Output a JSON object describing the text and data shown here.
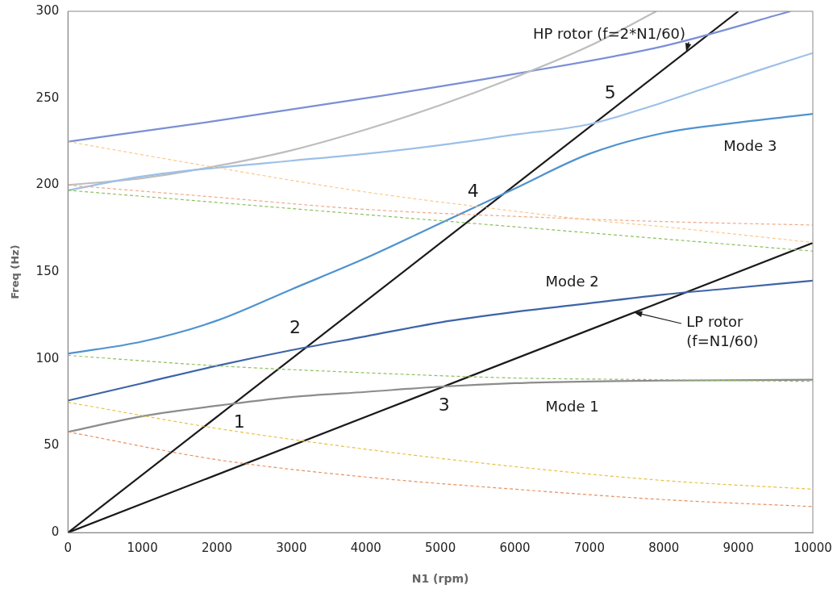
{
  "chart_data": {
    "type": "line",
    "xlabel": "N1 (rpm)",
    "ylabel": "Freq (Hz)",
    "xlim": [
      0,
      10000
    ],
    "xticks": [
      0,
      1000,
      2000,
      3000,
      4000,
      5000,
      6000,
      7000,
      8000,
      9000,
      10000
    ],
    "ylim": [
      0,
      300
    ],
    "yticks": [
      0,
      50,
      100,
      150,
      200,
      250,
      300
    ],
    "grid": false,
    "legend": false,
    "marker": "none",
    "series": [
      {
        "color": "#f9c98a",
        "line_style": "dashed",
        "x": [
          0,
          2000,
          4000,
          6000,
          7000,
          8000,
          10000
        ],
        "values": [
          225,
          210,
          196,
          185,
          180,
          176,
          167
        ]
      },
      {
        "color": "#f0a88a",
        "line_style": "dashed",
        "x": [
          0,
          2000,
          4000,
          6000,
          8000,
          10000
        ],
        "values": [
          200,
          193,
          186,
          182,
          179,
          177
        ]
      },
      {
        "color": "#8cc060",
        "line_style": "dashed",
        "x": [
          0,
          2000,
          4000,
          6000,
          8000,
          10000
        ],
        "values": [
          197,
          190,
          183,
          176,
          169,
          162
        ]
      },
      {
        "color": "#8cc060",
        "line_style": "dashed",
        "x": [
          0,
          2000,
          4000,
          6000,
          8000,
          10000
        ],
        "values": [
          102,
          96,
          92,
          89,
          88,
          87
        ]
      },
      {
        "color": "#e8c040",
        "line_style": "dashed",
        "x": [
          0,
          2000,
          4000,
          6000,
          8000,
          10000
        ],
        "values": [
          75,
          60,
          48,
          38,
          30,
          25
        ]
      },
      {
        "color": "#e89060",
        "line_style": "dashed",
        "x": [
          0,
          2000,
          4000,
          6000,
          8000,
          10000
        ],
        "values": [
          58,
          42,
          32,
          25,
          19,
          15
        ]
      },
      {
        "color": "#8c8c8c",
        "line_style": "solid",
        "x": [
          0,
          1000,
          2000,
          3000,
          4000,
          5000,
          6000,
          7000,
          8000,
          10000
        ],
        "values": [
          58,
          67,
          73,
          78,
          81,
          84,
          86,
          87,
          87.5,
          88
        ]
      },
      {
        "color": "#3e64a8",
        "line_style": "solid",
        "x": [
          0,
          1000,
          2000,
          3000,
          4000,
          5000,
          6000,
          7000,
          8000,
          9000,
          10000
        ],
        "values": [
          76,
          86,
          96,
          105,
          113,
          121,
          127,
          132,
          137,
          141,
          145
        ]
      },
      {
        "color": "#4f93cf",
        "line_style": "solid",
        "x": [
          0,
          1000,
          2000,
          3000,
          4000,
          5000,
          6000,
          7000,
          8000,
          9000,
          10000
        ],
        "values": [
          103,
          110,
          122,
          140,
          158,
          178,
          198,
          218,
          230,
          236,
          241
        ]
      },
      {
        "color": "#9cc0e8",
        "line_style": "solid",
        "x": [
          0,
          1000,
          2000,
          3000,
          4000,
          5000,
          6000,
          7000,
          7800,
          8500,
          9200,
          10000
        ],
        "values": [
          197,
          205,
          210,
          214,
          218,
          223,
          229,
          235,
          245,
          255,
          265,
          276
        ]
      },
      {
        "color": "#bdbdbd",
        "line_style": "solid",
        "x": [
          0,
          1000,
          2000,
          3000,
          4000,
          5000,
          6000,
          7000,
          7900
        ],
        "values": [
          200,
          204,
          211,
          220,
          232,
          246,
          262,
          280,
          300
        ]
      },
      {
        "color": "#7b8fd6",
        "line_style": "solid",
        "x": [
          0,
          2000,
          4000,
          6000,
          8000,
          9700
        ],
        "values": [
          225,
          237,
          250,
          264,
          280,
          300
        ]
      },
      {
        "color": "#1a1a1a",
        "line_style": "solid",
        "x": [
          0,
          9000
        ],
        "values": [
          0,
          300
        ]
      },
      {
        "color": "#1a1a1a",
        "line_style": "solid",
        "x": [
          0,
          10000
        ],
        "values": [
          0,
          166.7
        ]
      }
    ],
    "annotations": [
      {
        "text": "HP rotor (f=2*N1/60)",
        "x": 8300,
        "y": 277
      },
      {
        "text": "LP rotor\n(f=N1/60)",
        "x": 7600,
        "y": 127
      },
      "Mode 1",
      "Mode 2",
      "Mode 3",
      "1",
      "2",
      "3",
      "4",
      "5"
    ]
  }
}
